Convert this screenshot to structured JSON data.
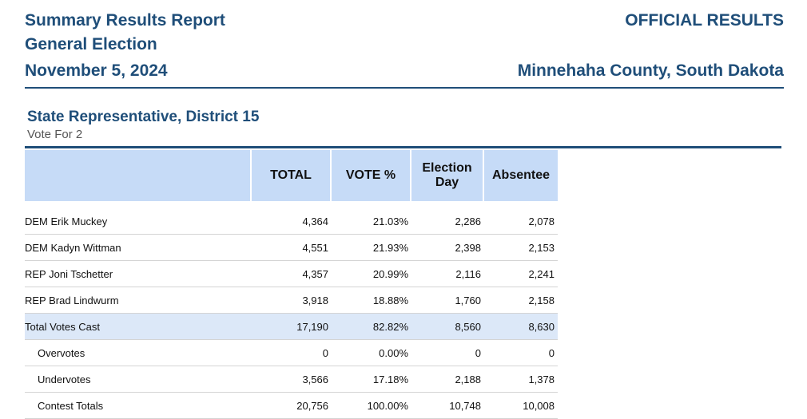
{
  "header": {
    "title_line1": "Summary Results Report",
    "title_line2": "General Election",
    "date": "November 5, 2024",
    "status": "OFFICIAL RESULTS",
    "jurisdiction": "Minnehaha County, South Dakota"
  },
  "contest": {
    "title": "State Representative, District 15",
    "vote_for": "Vote For 2",
    "columns": {
      "total": "TOTAL",
      "vote_pct": "VOTE %",
      "election_day": "Election Day",
      "absentee": "Absentee"
    },
    "rows": [
      {
        "name": "DEM Erik Muckey",
        "total": "4,364",
        "vote_pct": "21.03%",
        "election_day": "2,286",
        "absentee": "2,078"
      },
      {
        "name": "DEM Kadyn Wittman",
        "total": "4,551",
        "vote_pct": "21.93%",
        "election_day": "2,398",
        "absentee": "2,153"
      },
      {
        "name": "REP Joni Tschetter",
        "total": "4,357",
        "vote_pct": "20.99%",
        "election_day": "2,116",
        "absentee": "2,241"
      },
      {
        "name": "REP Brad Lindwurm",
        "total": "3,918",
        "vote_pct": "18.88%",
        "election_day": "1,760",
        "absentee": "2,158"
      },
      {
        "name": "Total Votes Cast",
        "total": "17,190",
        "vote_pct": "82.82%",
        "election_day": "8,560",
        "absentee": "8,630"
      },
      {
        "name": "Overvotes",
        "total": "0",
        "vote_pct": "0.00%",
        "election_day": "0",
        "absentee": "0"
      },
      {
        "name": "Undervotes",
        "total": "3,566",
        "vote_pct": "17.18%",
        "election_day": "2,188",
        "absentee": "1,378"
      },
      {
        "name": "Contest Totals",
        "total": "20,756",
        "vote_pct": "100.00%",
        "election_day": "10,748",
        "absentee": "10,008"
      }
    ]
  }
}
